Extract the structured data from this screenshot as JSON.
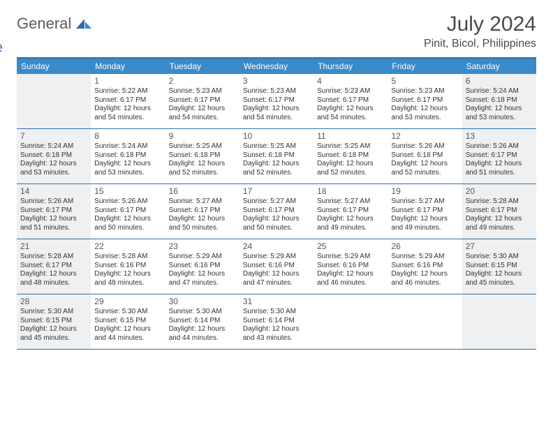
{
  "brand": {
    "general": "General",
    "blue": "Blue"
  },
  "title": "July 2024",
  "location": "Pinit, Bicol, Philippines",
  "colors": {
    "header_bar": "#3a8ac9",
    "rule": "#2f6fa8",
    "shaded_bg": "#eef0f1",
    "text": "#333333",
    "logo_gray": "#5c5c5c",
    "logo_blue": "#3a7fc4"
  },
  "weekdays": [
    "Sunday",
    "Monday",
    "Tuesday",
    "Wednesday",
    "Thursday",
    "Friday",
    "Saturday"
  ],
  "weeks": [
    [
      {
        "n": "",
        "shaded": true
      },
      {
        "n": "1",
        "sr": "Sunrise: 5:22 AM",
        "ss": "Sunset: 6:17 PM",
        "d1": "Daylight: 12 hours",
        "d2": "and 54 minutes."
      },
      {
        "n": "2",
        "sr": "Sunrise: 5:23 AM",
        "ss": "Sunset: 6:17 PM",
        "d1": "Daylight: 12 hours",
        "d2": "and 54 minutes."
      },
      {
        "n": "3",
        "sr": "Sunrise: 5:23 AM",
        "ss": "Sunset: 6:17 PM",
        "d1": "Daylight: 12 hours",
        "d2": "and 54 minutes."
      },
      {
        "n": "4",
        "sr": "Sunrise: 5:23 AM",
        "ss": "Sunset: 6:17 PM",
        "d1": "Daylight: 12 hours",
        "d2": "and 54 minutes."
      },
      {
        "n": "5",
        "sr": "Sunrise: 5:23 AM",
        "ss": "Sunset: 6:17 PM",
        "d1": "Daylight: 12 hours",
        "d2": "and 53 minutes."
      },
      {
        "n": "6",
        "sr": "Sunrise: 5:24 AM",
        "ss": "Sunset: 6:18 PM",
        "d1": "Daylight: 12 hours",
        "d2": "and 53 minutes.",
        "shaded": true
      }
    ],
    [
      {
        "n": "7",
        "sr": "Sunrise: 5:24 AM",
        "ss": "Sunset: 6:18 PM",
        "d1": "Daylight: 12 hours",
        "d2": "and 53 minutes.",
        "shaded": true
      },
      {
        "n": "8",
        "sr": "Sunrise: 5:24 AM",
        "ss": "Sunset: 6:18 PM",
        "d1": "Daylight: 12 hours",
        "d2": "and 53 minutes."
      },
      {
        "n": "9",
        "sr": "Sunrise: 5:25 AM",
        "ss": "Sunset: 6:18 PM",
        "d1": "Daylight: 12 hours",
        "d2": "and 52 minutes."
      },
      {
        "n": "10",
        "sr": "Sunrise: 5:25 AM",
        "ss": "Sunset: 6:18 PM",
        "d1": "Daylight: 12 hours",
        "d2": "and 52 minutes."
      },
      {
        "n": "11",
        "sr": "Sunrise: 5:25 AM",
        "ss": "Sunset: 6:18 PM",
        "d1": "Daylight: 12 hours",
        "d2": "and 52 minutes."
      },
      {
        "n": "12",
        "sr": "Sunrise: 5:26 AM",
        "ss": "Sunset: 6:18 PM",
        "d1": "Daylight: 12 hours",
        "d2": "and 52 minutes."
      },
      {
        "n": "13",
        "sr": "Sunrise: 5:26 AM",
        "ss": "Sunset: 6:17 PM",
        "d1": "Daylight: 12 hours",
        "d2": "and 51 minutes.",
        "shaded": true
      }
    ],
    [
      {
        "n": "14",
        "sr": "Sunrise: 5:26 AM",
        "ss": "Sunset: 6:17 PM",
        "d1": "Daylight: 12 hours",
        "d2": "and 51 minutes.",
        "shaded": true
      },
      {
        "n": "15",
        "sr": "Sunrise: 5:26 AM",
        "ss": "Sunset: 6:17 PM",
        "d1": "Daylight: 12 hours",
        "d2": "and 50 minutes."
      },
      {
        "n": "16",
        "sr": "Sunrise: 5:27 AM",
        "ss": "Sunset: 6:17 PM",
        "d1": "Daylight: 12 hours",
        "d2": "and 50 minutes."
      },
      {
        "n": "17",
        "sr": "Sunrise: 5:27 AM",
        "ss": "Sunset: 6:17 PM",
        "d1": "Daylight: 12 hours",
        "d2": "and 50 minutes."
      },
      {
        "n": "18",
        "sr": "Sunrise: 5:27 AM",
        "ss": "Sunset: 6:17 PM",
        "d1": "Daylight: 12 hours",
        "d2": "and 49 minutes."
      },
      {
        "n": "19",
        "sr": "Sunrise: 5:27 AM",
        "ss": "Sunset: 6:17 PM",
        "d1": "Daylight: 12 hours",
        "d2": "and 49 minutes."
      },
      {
        "n": "20",
        "sr": "Sunrise: 5:28 AM",
        "ss": "Sunset: 6:17 PM",
        "d1": "Daylight: 12 hours",
        "d2": "and 49 minutes.",
        "shaded": true
      }
    ],
    [
      {
        "n": "21",
        "sr": "Sunrise: 5:28 AM",
        "ss": "Sunset: 6:17 PM",
        "d1": "Daylight: 12 hours",
        "d2": "and 48 minutes.",
        "shaded": true
      },
      {
        "n": "22",
        "sr": "Sunrise: 5:28 AM",
        "ss": "Sunset: 6:16 PM",
        "d1": "Daylight: 12 hours",
        "d2": "and 48 minutes."
      },
      {
        "n": "23",
        "sr": "Sunrise: 5:29 AM",
        "ss": "Sunset: 6:16 PM",
        "d1": "Daylight: 12 hours",
        "d2": "and 47 minutes."
      },
      {
        "n": "24",
        "sr": "Sunrise: 5:29 AM",
        "ss": "Sunset: 6:16 PM",
        "d1": "Daylight: 12 hours",
        "d2": "and 47 minutes."
      },
      {
        "n": "25",
        "sr": "Sunrise: 5:29 AM",
        "ss": "Sunset: 6:16 PM",
        "d1": "Daylight: 12 hours",
        "d2": "and 46 minutes."
      },
      {
        "n": "26",
        "sr": "Sunrise: 5:29 AM",
        "ss": "Sunset: 6:16 PM",
        "d1": "Daylight: 12 hours",
        "d2": "and 46 minutes."
      },
      {
        "n": "27",
        "sr": "Sunrise: 5:30 AM",
        "ss": "Sunset: 6:15 PM",
        "d1": "Daylight: 12 hours",
        "d2": "and 45 minutes.",
        "shaded": true
      }
    ],
    [
      {
        "n": "28",
        "sr": "Sunrise: 5:30 AM",
        "ss": "Sunset: 6:15 PM",
        "d1": "Daylight: 12 hours",
        "d2": "and 45 minutes.",
        "shaded": true
      },
      {
        "n": "29",
        "sr": "Sunrise: 5:30 AM",
        "ss": "Sunset: 6:15 PM",
        "d1": "Daylight: 12 hours",
        "d2": "and 44 minutes."
      },
      {
        "n": "30",
        "sr": "Sunrise: 5:30 AM",
        "ss": "Sunset: 6:14 PM",
        "d1": "Daylight: 12 hours",
        "d2": "and 44 minutes."
      },
      {
        "n": "31",
        "sr": "Sunrise: 5:30 AM",
        "ss": "Sunset: 6:14 PM",
        "d1": "Daylight: 12 hours",
        "d2": "and 43 minutes."
      },
      {
        "n": "",
        "shaded": false
      },
      {
        "n": "",
        "shaded": false
      },
      {
        "n": "",
        "shaded": true
      }
    ]
  ]
}
